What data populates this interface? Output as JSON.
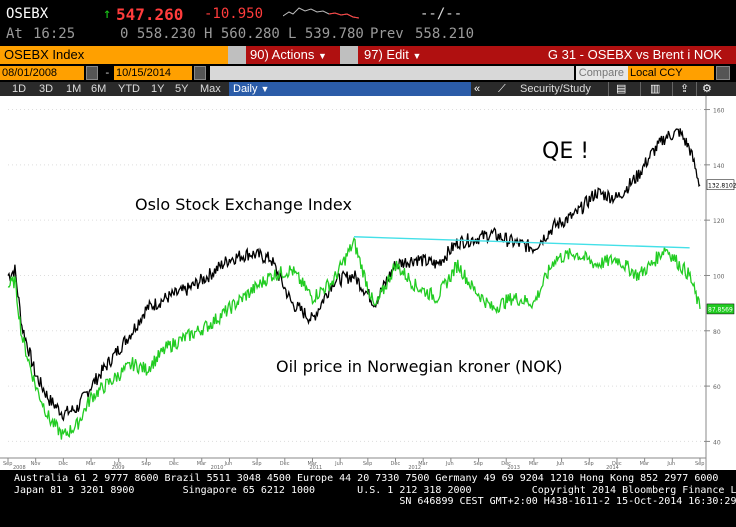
{
  "quote": {
    "ticker": "OSEBX",
    "arrow": "↑",
    "last": "547.260",
    "change": "-10.950",
    "bid_ask": "--/--",
    "at_label": "At",
    "time": "16:25",
    "open": "0 558.230",
    "high": "H 560.280",
    "low": "L 539.780",
    "prev_label": "Prev",
    "prev": "558.210",
    "colors": {
      "up": "#19c819",
      "down": "#ff3c3c"
    }
  },
  "toolbar": {
    "title": "OSEBX Index",
    "actions": "90) Actions",
    "edit": "97) Edit",
    "chart_title": "G 31 - OSEBX vs Brent i NOK",
    "chevron_icon": "chevron-down-icon"
  },
  "dates": {
    "start": "08/01/2008",
    "dash": "-",
    "end": "10/15/2014",
    "compare": "Compare",
    "currency": "Local CCY"
  },
  "periods": {
    "items": [
      "1D",
      "3D",
      "1M",
      "6M",
      "YTD",
      "1Y",
      "5Y",
      "Max"
    ],
    "frequency": "Daily",
    "security_study": "Security/Study",
    "icons": [
      "calendar-icon",
      "collapse-icon",
      "line-icon",
      "note-icon",
      "chart-icon",
      "export-icon",
      "gear-icon"
    ]
  },
  "chart_data": {
    "type": "line",
    "annotations": {
      "qe": "QE !",
      "oslo": "Oslo Stock Exchange Index",
      "oil": "Oil price in Norwegian kroner (NOK)"
    },
    "y_axis": {
      "ylim": [
        34,
        162
      ],
      "ticks": [
        40,
        60,
        80,
        100,
        120,
        140,
        160
      ]
    },
    "last_value_labels": {
      "osebx": "132.8102",
      "oil": "87.8569"
    },
    "x_axis": {
      "months": [
        "Sep",
        "Nov",
        "Dec",
        "Mar",
        "Jun",
        "Sep",
        "Dec",
        "Mar",
        "Jun",
        "Sep",
        "Dec",
        "Mar",
        "Jun",
        "Sep",
        "Dec",
        "Mar",
        "Jun",
        "Sep",
        "Dec",
        "Mar",
        "Jun",
        "Sep",
        "Dec",
        "Mar",
        "Jun",
        "Sep"
      ],
      "years": [
        "2008",
        "2009",
        "2010",
        "2011",
        "2012",
        "2013",
        "2014"
      ]
    },
    "series": [
      {
        "key": "osebx",
        "color": "#000000",
        "t": [
          0.0,
          0.01,
          0.02,
          0.04,
          0.06,
          0.08,
          0.1,
          0.12,
          0.15,
          0.18,
          0.2,
          0.23,
          0.26,
          0.29,
          0.32,
          0.35,
          0.38,
          0.41,
          0.44,
          0.47,
          0.5,
          0.53,
          0.56,
          0.59,
          0.62,
          0.65,
          0.67,
          0.7,
          0.73,
          0.76,
          0.79,
          0.82,
          0.85,
          0.88,
          0.91,
          0.93,
          0.95,
          0.97,
          0.985,
          1.0
        ],
        "values": [
          100,
          102,
          82,
          64,
          55,
          50,
          52,
          60,
          70,
          80,
          88,
          92,
          95,
          100,
          106,
          108,
          106,
          90,
          84,
          98,
          100,
          90,
          104,
          106,
          104,
          112,
          113,
          115,
          112,
          110,
          118,
          122,
          130,
          128,
          136,
          144,
          150,
          152,
          146,
          132.8
        ]
      },
      {
        "key": "oil",
        "color": "#22cc22",
        "t": [
          0.0,
          0.01,
          0.02,
          0.04,
          0.06,
          0.08,
          0.1,
          0.12,
          0.15,
          0.18,
          0.2,
          0.23,
          0.26,
          0.29,
          0.32,
          0.35,
          0.38,
          0.41,
          0.44,
          0.47,
          0.5,
          0.53,
          0.56,
          0.59,
          0.62,
          0.65,
          0.67,
          0.7,
          0.73,
          0.76,
          0.79,
          0.82,
          0.85,
          0.88,
          0.91,
          0.93,
          0.95,
          0.97,
          0.985,
          1.0
        ],
        "values": [
          96,
          98,
          78,
          60,
          48,
          42,
          46,
          56,
          62,
          68,
          66,
          74,
          78,
          82,
          88,
          94,
          100,
          102,
          92,
          98,
          112,
          88,
          104,
          96,
          92,
          104,
          96,
          88,
          92,
          90,
          106,
          108,
          104,
          106,
          100,
          104,
          110,
          104,
          100,
          87.9
        ]
      }
    ],
    "trend_line": {
      "color": "#44e0e8",
      "t": [
        0.5,
        0.985
      ],
      "values": [
        114,
        110
      ]
    }
  },
  "footer": {
    "line1": "Australia 61 2 9777 8600 Brazil 5511 3048 4500 Europe 44 20 7330 7500 Germany 49 69 9204 1210 Hong Kong 852 2977 6000",
    "line2": "Japan 81 3 3201 8900        Singapore 65 6212 1000       U.S. 1 212 318 2000          Copyright 2014 Bloomberg Finance L.P.",
    "line3": "                                                                SN 646899 CEST GMT+2:00 H438-1611-2 15-Oct-2014 16:30:29"
  }
}
